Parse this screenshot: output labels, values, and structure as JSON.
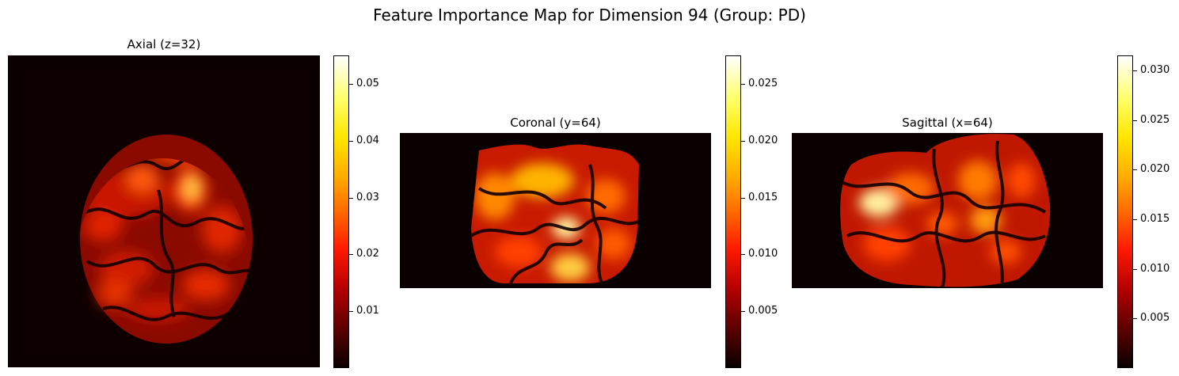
{
  "title": "Feature Importance Map for Dimension 94 (Group: PD)",
  "chart_data": [
    {
      "type": "heatmap",
      "title": "Axial (z=32)",
      "colormap": "hot",
      "axes": "off",
      "colorbar": {
        "vmin": 0.0,
        "vmax": 0.055,
        "ticks": [
          0.01,
          0.02,
          0.03,
          0.04,
          0.05
        ],
        "tick_labels": [
          "0.01",
          "0.02",
          "0.03",
          "0.04",
          "0.05"
        ]
      }
    },
    {
      "type": "heatmap",
      "title": "Coronal (y=64)",
      "colormap": "hot",
      "axes": "off",
      "colorbar": {
        "vmin": 0.0,
        "vmax": 0.0275,
        "ticks": [
          0.005,
          0.01,
          0.015,
          0.02,
          0.025
        ],
        "tick_labels": [
          "0.005",
          "0.010",
          "0.015",
          "0.020",
          "0.025"
        ]
      }
    },
    {
      "type": "heatmap",
      "title": "Sagittal (x=64)",
      "colormap": "hot",
      "axes": "off",
      "colorbar": {
        "vmin": 0.0,
        "vmax": 0.0315,
        "ticks": [
          0.005,
          0.01,
          0.015,
          0.02,
          0.025,
          0.03
        ],
        "tick_labels": [
          "0.005",
          "0.010",
          "0.015",
          "0.020",
          "0.025",
          "0.030"
        ]
      }
    }
  ]
}
